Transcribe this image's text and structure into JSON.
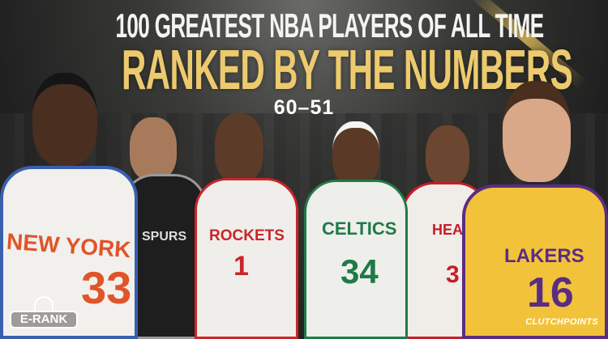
{
  "header": {
    "line1": "100 GREATEST NBA PLAYERS OF ALL TIME",
    "line2": "RANKED BY THE NUMBERS",
    "range": "60–51"
  },
  "colors": {
    "gold": "#ecca6e",
    "white": "#f4f4f2",
    "background": "#2a2a2a"
  },
  "players": [
    {
      "team_text": "NEW YORK",
      "number": "33",
      "jersey_color": "#f2f0ec",
      "trim": "#e0542a"
    },
    {
      "team_text": "SPURS",
      "number": "",
      "jersey_color": "#1e1e1e",
      "trim": "#aaaaaa"
    },
    {
      "team_text": "ROCKETS",
      "number": "1",
      "jersey_color": "#f0eeea",
      "trim": "#c8262a"
    },
    {
      "team_text": "CELTICS",
      "number": "34",
      "jersey_color": "#eeeeea",
      "trim": "#1f7a48"
    },
    {
      "team_text": "HEAT",
      "number": "3",
      "jersey_color": "#f0ece8",
      "trim": "#c41e2a"
    },
    {
      "team_text": "LAKERS",
      "number": "16",
      "jersey_color": "#f2c33a",
      "trim": "#5a2d82"
    }
  ],
  "logos": {
    "left": "E-RANK",
    "right": "CLUTCHPOINTS"
  }
}
